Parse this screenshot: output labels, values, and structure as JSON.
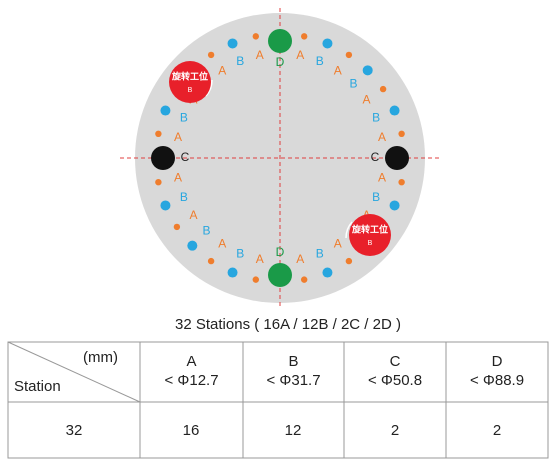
{
  "diagram": {
    "ring": [
      "D",
      "A",
      "B",
      "A",
      "B",
      "A",
      "B",
      "A",
      "C",
      "A",
      "B",
      "A",
      "B",
      "A",
      "B",
      "A",
      "D",
      "A",
      "B",
      "A",
      "B",
      "A",
      "B",
      "A",
      "C",
      "A",
      "B",
      "A",
      "B",
      "A",
      "B",
      "A"
    ],
    "markers": [
      {
        "text": "旋转工位",
        "sub": "B"
      },
      {
        "text": "旋转工位",
        "sub": "B"
      }
    ]
  },
  "caption": "32 Stations ( 16A / 12B / 2C / 2D )",
  "table": {
    "header": {
      "unit": "(mm)",
      "corner": "Station",
      "columns": [
        {
          "name": "A",
          "size": "< Φ12.7"
        },
        {
          "name": "B",
          "size": "< Φ31.7"
        },
        {
          "name": "C",
          "size": "< Φ50.8"
        },
        {
          "name": "D",
          "size": "< Φ88.9"
        }
      ]
    },
    "rows": [
      [
        "32",
        "16",
        "12",
        "2",
        "2"
      ]
    ]
  }
}
